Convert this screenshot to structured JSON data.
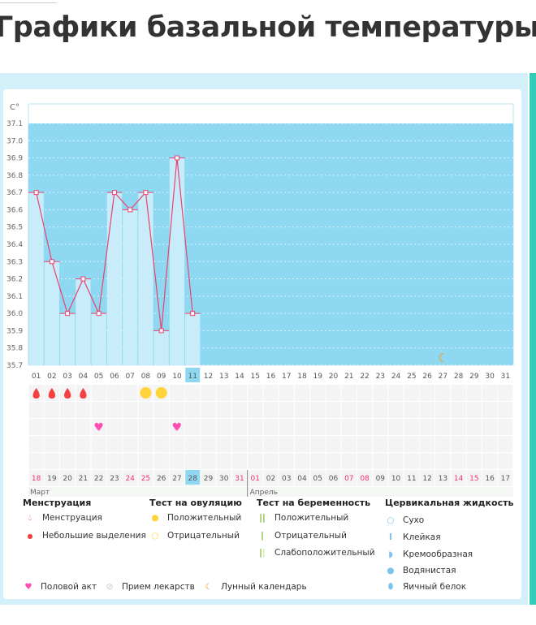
{
  "title": "Графики базальной температуры",
  "chart_data": {
    "type": "bar+line",
    "ylabel": "C°",
    "ylim": [
      35.7,
      37.1
    ],
    "yticks": [
      "37.1",
      "37.0",
      "36.9",
      "36.8",
      "36.7",
      "36.6",
      "36.5",
      "36.4",
      "36.3",
      "36.2",
      "36.1",
      "36.0",
      "35.9",
      "35.8",
      "35.7"
    ],
    "cycle_days": [
      "01",
      "02",
      "03",
      "04",
      "05",
      "06",
      "07",
      "08",
      "09",
      "10",
      "11",
      "12",
      "13",
      "14",
      "15",
      "16",
      "17",
      "18",
      "19",
      "20",
      "21",
      "22",
      "23",
      "24",
      "25",
      "26",
      "27",
      "28",
      "29",
      "30",
      "31"
    ],
    "temperatures": [
      36.7,
      36.3,
      36.0,
      36.2,
      36.0,
      36.7,
      36.6,
      36.7,
      35.9,
      36.9,
      36.0
    ],
    "current_day_index": 10,
    "dates": [
      "18",
      "19",
      "20",
      "21",
      "22",
      "23",
      "24",
      "25",
      "26",
      "27",
      "28",
      "29",
      "30",
      "31",
      "01",
      "02",
      "03",
      "04",
      "05",
      "06",
      "07",
      "08",
      "09",
      "10",
      "11",
      "12",
      "13",
      "14",
      "15",
      "16",
      "17"
    ],
    "weekend_indices": [
      0,
      6,
      7,
      13,
      14,
      20,
      21,
      27,
      28
    ],
    "months": [
      "Март",
      "Апрель"
    ],
    "month_split_index": 14,
    "events": {
      "menstruation": [
        0,
        1,
        2,
        3
      ],
      "ovulation_positive": [
        7,
        8
      ],
      "intercourse": [
        4,
        9
      ],
      "moon": [
        26
      ]
    },
    "colors": {
      "bg": "#8fd8f2",
      "bar": "#c9ecfa",
      "line": "#e8426e",
      "drop": "#f24242",
      "ovu": "#ffd43b",
      "heart": "#ff4fb0",
      "moon": "#f39a1c"
    }
  },
  "legend": {
    "menstruation": {
      "title": "Менструация",
      "items": [
        "Менструация",
        "Небольшие выделения"
      ]
    },
    "ovulation": {
      "title": "Тест на овуляцию",
      "items": [
        "Положительный",
        "Отрицательный"
      ]
    },
    "pregnancy": {
      "title": "Тест на беременность",
      "items": [
        "Положительный",
        "Отрицательный",
        "Слабоположительный"
      ]
    },
    "cervical": {
      "title": "Цервикальная жидкость",
      "items": [
        "Сухо",
        "Клейкая",
        "Кремообразная",
        "Водянистая",
        "Яичный белок"
      ]
    },
    "other": [
      "Половой акт",
      "Прием лекарств",
      "Лунный календарь"
    ]
  }
}
